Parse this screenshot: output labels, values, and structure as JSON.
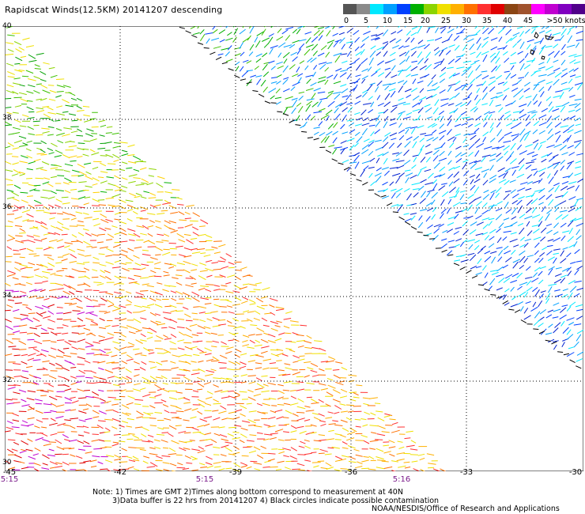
{
  "title": "Rapidscat Winds(12.5KM) 20141207 descending",
  "legend": {
    "colors": [
      "#555555",
      "#8a8a8a",
      "#00e8ff",
      "#00a0ff",
      "#0040ff",
      "#00b000",
      "#8cd400",
      "#f0e000",
      "#ffb000",
      "#ff7000",
      "#ff3030",
      "#e00000",
      "#8b4513",
      "#a0522d",
      "#ff00ff",
      "#c000d0",
      "#8000c0",
      "#50008a"
    ],
    "labels": [
      "0",
      "5",
      "10",
      "15",
      "20",
      "25",
      "30",
      "35",
      "40",
      "45",
      ">50 knots"
    ]
  },
  "axes": {
    "lat_labels": [
      "40",
      "38",
      "36",
      "34",
      "32",
      "30"
    ],
    "lon_labels": [
      "-45",
      "-42",
      "-39",
      "-36",
      "-33",
      "-30"
    ],
    "time_labels": [
      "5:15",
      "5:15",
      "5:16"
    ]
  },
  "notes": {
    "line1": "Note: 1) Times are GMT 2)Times along bottom correspond to measurement at 40N",
    "line2": "3)Data buffer is 22 hrs from 20141207 4) Black circles indicate possible contamination",
    "credit": "NOAA/NESDIS/Office of Research and Applications"
  }
}
